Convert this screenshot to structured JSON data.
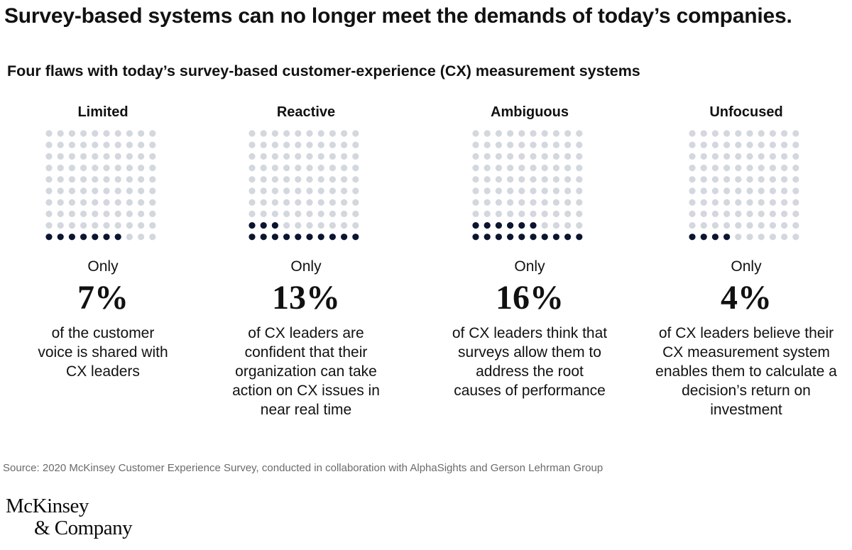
{
  "headline": "Survey-based systems can no longer meet the demands of today’s companies.",
  "source": "Source: 2020 McKinsey Customer Experience Survey, conducted in collaboration with AlphaSights and Gerson Lehrman Group",
  "logo": {
    "line1": "McKinsey",
    "line2": "& Company"
  },
  "colors": {
    "filled_dot": "#0b1530",
    "empty_dot": "#d3d7de",
    "text": "#111111",
    "source_text": "#6b6b6b"
  },
  "chart_data": {
    "type": "waffle",
    "title": "Four flaws with today’s survey-based customer-experience (CX) measurement systems",
    "grid": {
      "rows": 10,
      "cols": 10,
      "fill_from": "bottom-left",
      "fill_direction": "row-wise-upward"
    },
    "panels": [
      {
        "label": "Limited",
        "prefix": "Only",
        "value": 7,
        "value_label": "7%",
        "description": "of the customer voice is shared with CX leaders"
      },
      {
        "label": "Reactive",
        "prefix": "Only",
        "value": 13,
        "value_label": "13%",
        "description": "of CX leaders are confident that their organization can take action on CX issues in near real time"
      },
      {
        "label": "Ambiguous",
        "prefix": "Only",
        "value": 16,
        "value_label": "16%",
        "description": "of CX leaders think that surveys allow them to address the root causes of performance"
      },
      {
        "label": "Unfocused",
        "prefix": "Only",
        "value": 4,
        "value_label": "4%",
        "description": "of CX leaders believe their CX measurement system enables them to calculate a decision’s return on investment"
      }
    ]
  }
}
